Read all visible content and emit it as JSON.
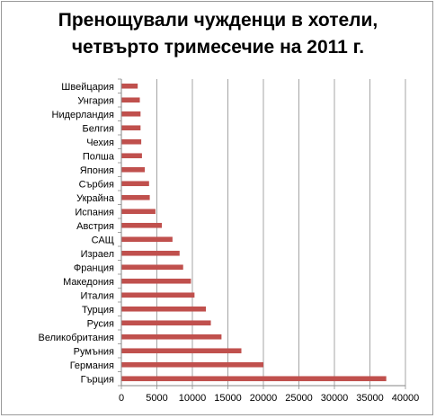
{
  "chart_data": {
    "type": "bar",
    "orientation": "horizontal",
    "title_lines": [
      "Пренощували чужденци в хотели,",
      "четвърто тримесечие на 2011 г."
    ],
    "categories": [
      "Швейцария",
      "Унгария",
      "Нидерландия",
      "Белгия",
      "Чехия",
      "Полша",
      "Япония",
      "Сърбия",
      "Украйна",
      "Испания",
      "Австрия",
      "САЩ",
      "Израел",
      "Франция",
      "Македония",
      "Италия",
      "Турция",
      "Русия",
      "Великобритания",
      "Румъния",
      "Германия",
      "Гърция"
    ],
    "values": [
      2300,
      2600,
      2700,
      2700,
      2800,
      2900,
      3300,
      3900,
      4000,
      4800,
      5700,
      7200,
      8200,
      8700,
      9800,
      10300,
      11900,
      12600,
      14100,
      16900,
      20000,
      37300
    ],
    "xlim": [
      0,
      40000
    ],
    "xticks": [
      0,
      5000,
      10000,
      15000,
      20000,
      25000,
      30000,
      35000,
      40000
    ],
    "grid": "vertical",
    "legend": "none",
    "bar_color": "#c0504d"
  }
}
